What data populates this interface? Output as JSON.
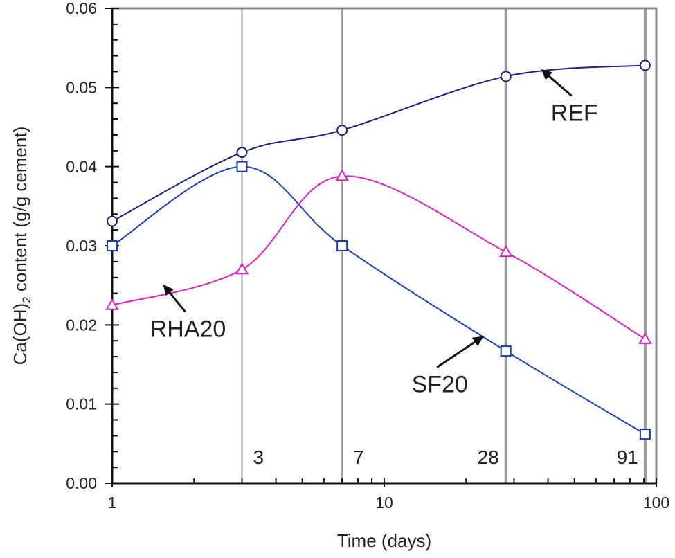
{
  "chart_data": {
    "type": "line",
    "title": "",
    "xlabel": "Time (days)",
    "ylabel": "Ca(OH)2 content (g/g cement)",
    "ylabel_parts": {
      "pre": "Ca(OH)",
      "sub": "2",
      "post": " content (g/g cement)"
    },
    "xscale": "log",
    "xlim": [
      1,
      100
    ],
    "ylim": [
      0,
      0.06
    ],
    "xticks": [
      "1",
      "10",
      "100"
    ],
    "yticks": [
      "0.00",
      "0.01",
      "0.02",
      "0.03",
      "0.04",
      "0.05",
      "0.06"
    ],
    "ages": [
      {
        "x": 3,
        "label": "3"
      },
      {
        "x": 7,
        "label": "7"
      },
      {
        "x": 28,
        "label": "28"
      },
      {
        "x": 91,
        "label": "91"
      }
    ],
    "series": [
      {
        "name": "REF",
        "marker": "circle",
        "color": "#1a237e",
        "x": [
          1,
          3,
          7,
          28,
          91
        ],
        "values": [
          0.0331,
          0.0418,
          0.0446,
          0.0514,
          0.0528
        ]
      },
      {
        "name": "SF20",
        "marker": "square",
        "color": "#1a3fbf",
        "x": [
          1,
          3,
          7,
          28,
          91
        ],
        "values": [
          0.03,
          0.04,
          0.03,
          0.0167,
          0.0062
        ]
      },
      {
        "name": "RHA20",
        "marker": "triangle",
        "color": "#e020c0",
        "x": [
          1,
          3,
          7,
          28,
          91
        ],
        "values": [
          0.0225,
          0.027,
          0.0388,
          0.0292,
          0.0182
        ]
      }
    ],
    "annotations": [
      {
        "text": "REF",
        "x": 50,
        "y": 0.0458,
        "ax": 38,
        "ay": 0.0522
      },
      {
        "text": "SF20",
        "x": 16,
        "y": 0.0115,
        "ax": 23,
        "ay": 0.0185
      },
      {
        "text": "RHA20",
        "x": 1.9,
        "y": 0.0185,
        "ax": 1.55,
        "ay": 0.025
      }
    ]
  }
}
